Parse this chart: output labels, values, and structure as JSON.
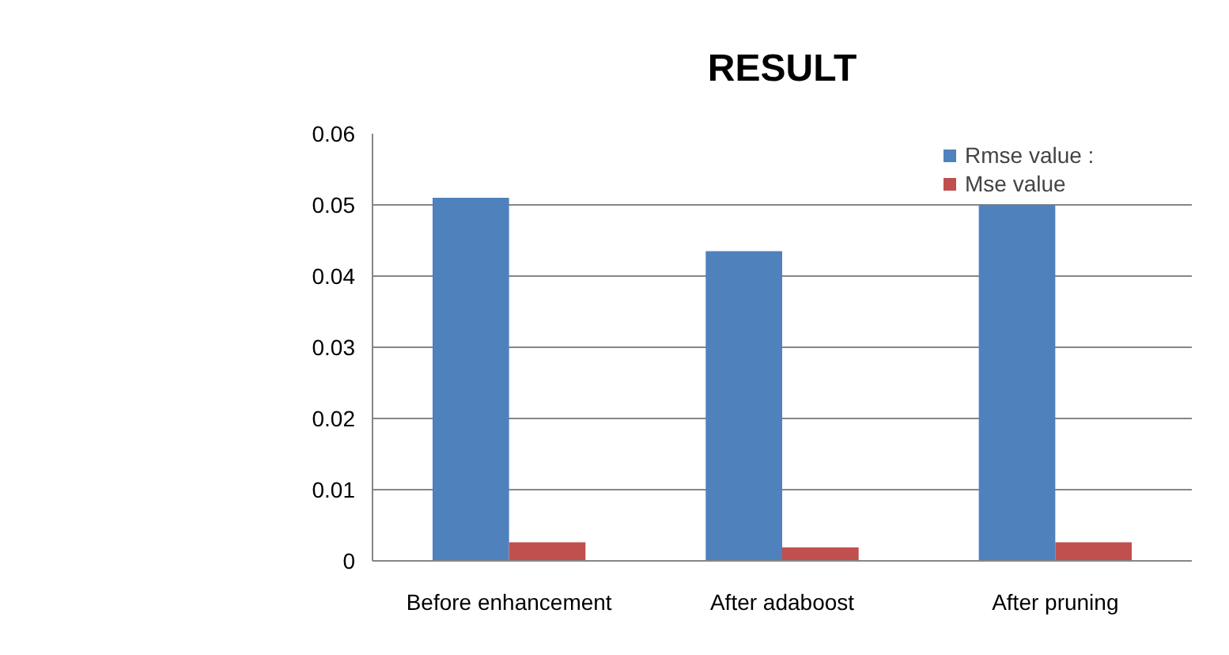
{
  "chart_data": {
    "type": "bar",
    "title": "RESULT",
    "categories": [
      "Before enhancement",
      "After adaboost",
      "After pruning"
    ],
    "series": [
      {
        "name": "Rmse value :",
        "color": "#4f81bd",
        "values": [
          0.051,
          0.0435,
          0.05
        ]
      },
      {
        "name": "Mse value",
        "color": "#c0504d",
        "values": [
          0.0026,
          0.0019,
          0.0026
        ]
      }
    ],
    "ylim": [
      0,
      0.06
    ],
    "yticks": [
      0,
      0.01,
      0.02,
      0.03,
      0.04,
      0.05,
      0.06
    ],
    "grid": "y",
    "legend": "top right"
  }
}
